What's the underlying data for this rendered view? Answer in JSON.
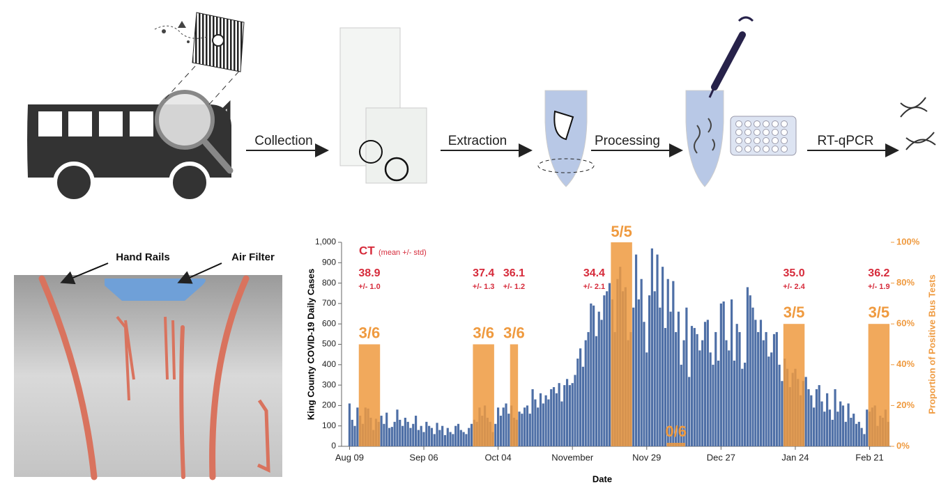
{
  "diagram": {
    "steps": [
      "Collection",
      "Extraction",
      "Processing",
      "RT-qPCR"
    ]
  },
  "photo": {
    "labels": [
      "Hand Rails",
      "Air Filter"
    ]
  },
  "chart_data": {
    "type": "bar",
    "xlabel": "Date",
    "ylabel": "King County COVID-19 Daily Cases",
    "y2label": "Proportion of Positive Bus Tests",
    "annotation": "CT",
    "annotation_sub": "(mean +/- std)",
    "color": "#4e6fa6",
    "xlim": [
      -3,
      204
    ],
    "xticks": [
      {
        "value": 0,
        "label": "Aug 09"
      },
      {
        "value": 28,
        "label": "Sep 06"
      },
      {
        "value": 56,
        "label": "Oct 04"
      },
      {
        "value": 84,
        "label": "November"
      },
      {
        "value": 112,
        "label": "Nov 29"
      },
      {
        "value": 140,
        "label": "Dec 27"
      },
      {
        "value": 168,
        "label": "Jan 24"
      },
      {
        "value": 196,
        "label": "Feb 21"
      }
    ],
    "ylim": [
      0,
      1000
    ],
    "yticks": [
      0,
      100,
      200,
      300,
      400,
      500,
      600,
      700,
      800,
      900,
      {
        "value": 1000,
        "label": "1,000"
      }
    ],
    "y2lim": [
      0,
      100
    ],
    "y2ticks": [
      {
        "value": 0,
        "label": "0%"
      },
      {
        "value": 20,
        "label": "20%"
      },
      {
        "value": 40,
        "label": "40%"
      },
      {
        "value": 60,
        "label": "60%"
      },
      {
        "value": 80,
        "label": "80%"
      },
      {
        "value": 100,
        "label": "100%"
      }
    ],
    "values": [
      210,
      130,
      100,
      190,
      150,
      110,
      190,
      185,
      140,
      80,
      135,
      120,
      150,
      110,
      165,
      90,
      95,
      120,
      180,
      130,
      100,
      140,
      120,
      90,
      110,
      150,
      80,
      100,
      70,
      120,
      100,
      90,
      60,
      115,
      80,
      100,
      55,
      90,
      70,
      60,
      100,
      110,
      80,
      70,
      60,
      90,
      110,
      130,
      120,
      190,
      150,
      200,
      140,
      120,
      70,
      110,
      190,
      150,
      190,
      210,
      160,
      200,
      140,
      130,
      170,
      160,
      190,
      200,
      160,
      280,
      230,
      190,
      260,
      210,
      250,
      230,
      280,
      290,
      260,
      310,
      220,
      300,
      330,
      300,
      310,
      350,
      430,
      480,
      390,
      520,
      560,
      700,
      690,
      540,
      660,
      620,
      740,
      760,
      800,
      720,
      560,
      820,
      880,
      760,
      780,
      520,
      560,
      680,
      940,
      720,
      820,
      610,
      460,
      740,
      970,
      760,
      940,
      680,
      880,
      580,
      820,
      660,
      810,
      560,
      660,
      400,
      520,
      680,
      340,
      590,
      580,
      550,
      470,
      520,
      610,
      620,
      460,
      400,
      560,
      420,
      700,
      710,
      520,
      470,
      720,
      420,
      600,
      560,
      380,
      410,
      780,
      740,
      680,
      620,
      560,
      620,
      520,
      560,
      440,
      460,
      550,
      560,
      400,
      320,
      430,
      380,
      290,
      360,
      380,
      330,
      250,
      320,
      340,
      280,
      250,
      190,
      280,
      300,
      220,
      170,
      260,
      180,
      130,
      280,
      170,
      220,
      200,
      120,
      210,
      140,
      160,
      110,
      120,
      90,
      60,
      180,
      170,
      190,
      200,
      100,
      150,
      140,
      180,
      120
    ],
    "bus_tests": {
      "axis": "y2",
      "color": "#ef9a3f",
      "periods": [
        {
          "start": 4,
          "end": 11,
          "value": 50,
          "label": "3/6",
          "ct": "38.9",
          "std": "+/- 1.0"
        },
        {
          "start": 47,
          "end": 54,
          "value": 50,
          "label": "3/6",
          "ct": "37.4",
          "std": "+/- 1.3"
        },
        {
          "start": 61,
          "end": 63,
          "value": 50,
          "label": "3/6",
          "ct": "36.1",
          "std": "+/- 1.2"
        },
        {
          "start": 99,
          "end": 106,
          "value": 100,
          "label": "5/5",
          "ct": "34.4",
          "std": "+/- 2.1"
        },
        {
          "start": 120,
          "end": 126,
          "value": 0,
          "label": "0/6"
        },
        {
          "start": 164,
          "end": 171,
          "value": 60,
          "label": "3/5",
          "ct": "35.0",
          "std": "+/- 2.4"
        },
        {
          "start": 196,
          "end": 203,
          "value": 60,
          "label": "3/5",
          "ct": "36.2",
          "std": "+/- 1.9"
        }
      ]
    }
  }
}
